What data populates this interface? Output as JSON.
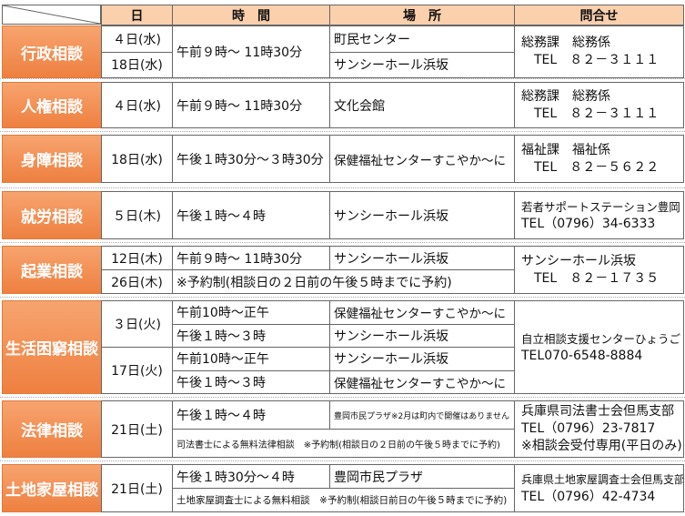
{
  "table": {
    "columns": [
      "日",
      "時　間",
      "場　所",
      "問合せ"
    ],
    "sections": [
      {
        "label": "行政相談",
        "contact": [
          "総務課　総務係",
          "TEL　８２－３１１１"
        ],
        "rows": [
          {
            "date": "４日(水)",
            "time": "午前９時～ 11時30分",
            "place": "町民センター"
          },
          {
            "date": "18日(水)",
            "place": "サンシーホール浜坂"
          }
        ]
      },
      {
        "label": "人権相談",
        "contact": [
          "総務課　総務係",
          "TEL　８２－３１１１"
        ],
        "rows": [
          {
            "date": "４日(水)",
            "time": "午前９時～ 11時30分",
            "place": "文化会館"
          }
        ]
      },
      {
        "label": "身障相談",
        "contact": [
          "福祉課　福祉係",
          "TEL　８２－５６２２"
        ],
        "rows": [
          {
            "date": "18日(水)",
            "time": "午後１時30分～３時30分",
            "place": "保健福祉センターすこやか～に"
          }
        ]
      },
      {
        "label": "就労相談",
        "contact": [
          "若者サポートステーション豊岡",
          "TEL（0796）34-6333"
        ],
        "rows": [
          {
            "date": "５日(木)",
            "time": "午後１時～４時",
            "place": "サンシーホール浜坂"
          }
        ]
      },
      {
        "label": "起業相談",
        "contact": [
          "サンシーホール浜坂",
          "TEL　８２－１７３５"
        ],
        "rows": [
          {
            "date": "12日(木)",
            "time": "午前９時～ 11時30分",
            "place": "サンシーホール浜坂"
          },
          {
            "date": "26日(木)",
            "note": "※予約制(相談日の２日前の午後５時までに予約)"
          }
        ]
      },
      {
        "label": "生活困窮相談",
        "contact": [
          "自立相談支援センターひょうご",
          "TEL070-6548-8884"
        ],
        "rows": [
          {
            "date": "３日(火)",
            "time": "午前10時～正午",
            "place": "保健福祉センターすこやか～に"
          },
          {
            "time": "午後１時～３時",
            "place": "サンシーホール浜坂"
          },
          {
            "date": "17日(火)",
            "time": "午前10時～正午",
            "place": "サンシーホール浜坂"
          },
          {
            "time": "午後１時～３時",
            "place": "保健福祉センターすこやか～に"
          }
        ]
      },
      {
        "label": "法律相談",
        "contact": [
          "兵庫県司法書士会但馬支部",
          "TEL（0796）23-7817",
          "※相談会受付専用(平日のみ)"
        ],
        "rows": [
          {
            "date": "21日(土)",
            "time": "午後１時～４時",
            "place": "豊岡市民プラザ※2月は町内で開催はありません"
          },
          {
            "note": "司法書士による無料法律相談　※予約制(相談日の２日前の午後５時までに予約)"
          }
        ]
      },
      {
        "label": "土地家屋相談",
        "contact": [
          "兵庫県土地家屋調査士会但馬支部",
          "TEL（0796）42-4734"
        ],
        "rows": [
          {
            "date": "21日(土)",
            "time": "午後１時30分～４時",
            "place": "豊岡市民プラザ"
          },
          {
            "note": "土地家屋調査士による無料相談　※予約制(相談日前日の午後５時までに予約)"
          }
        ]
      }
    ]
  }
}
